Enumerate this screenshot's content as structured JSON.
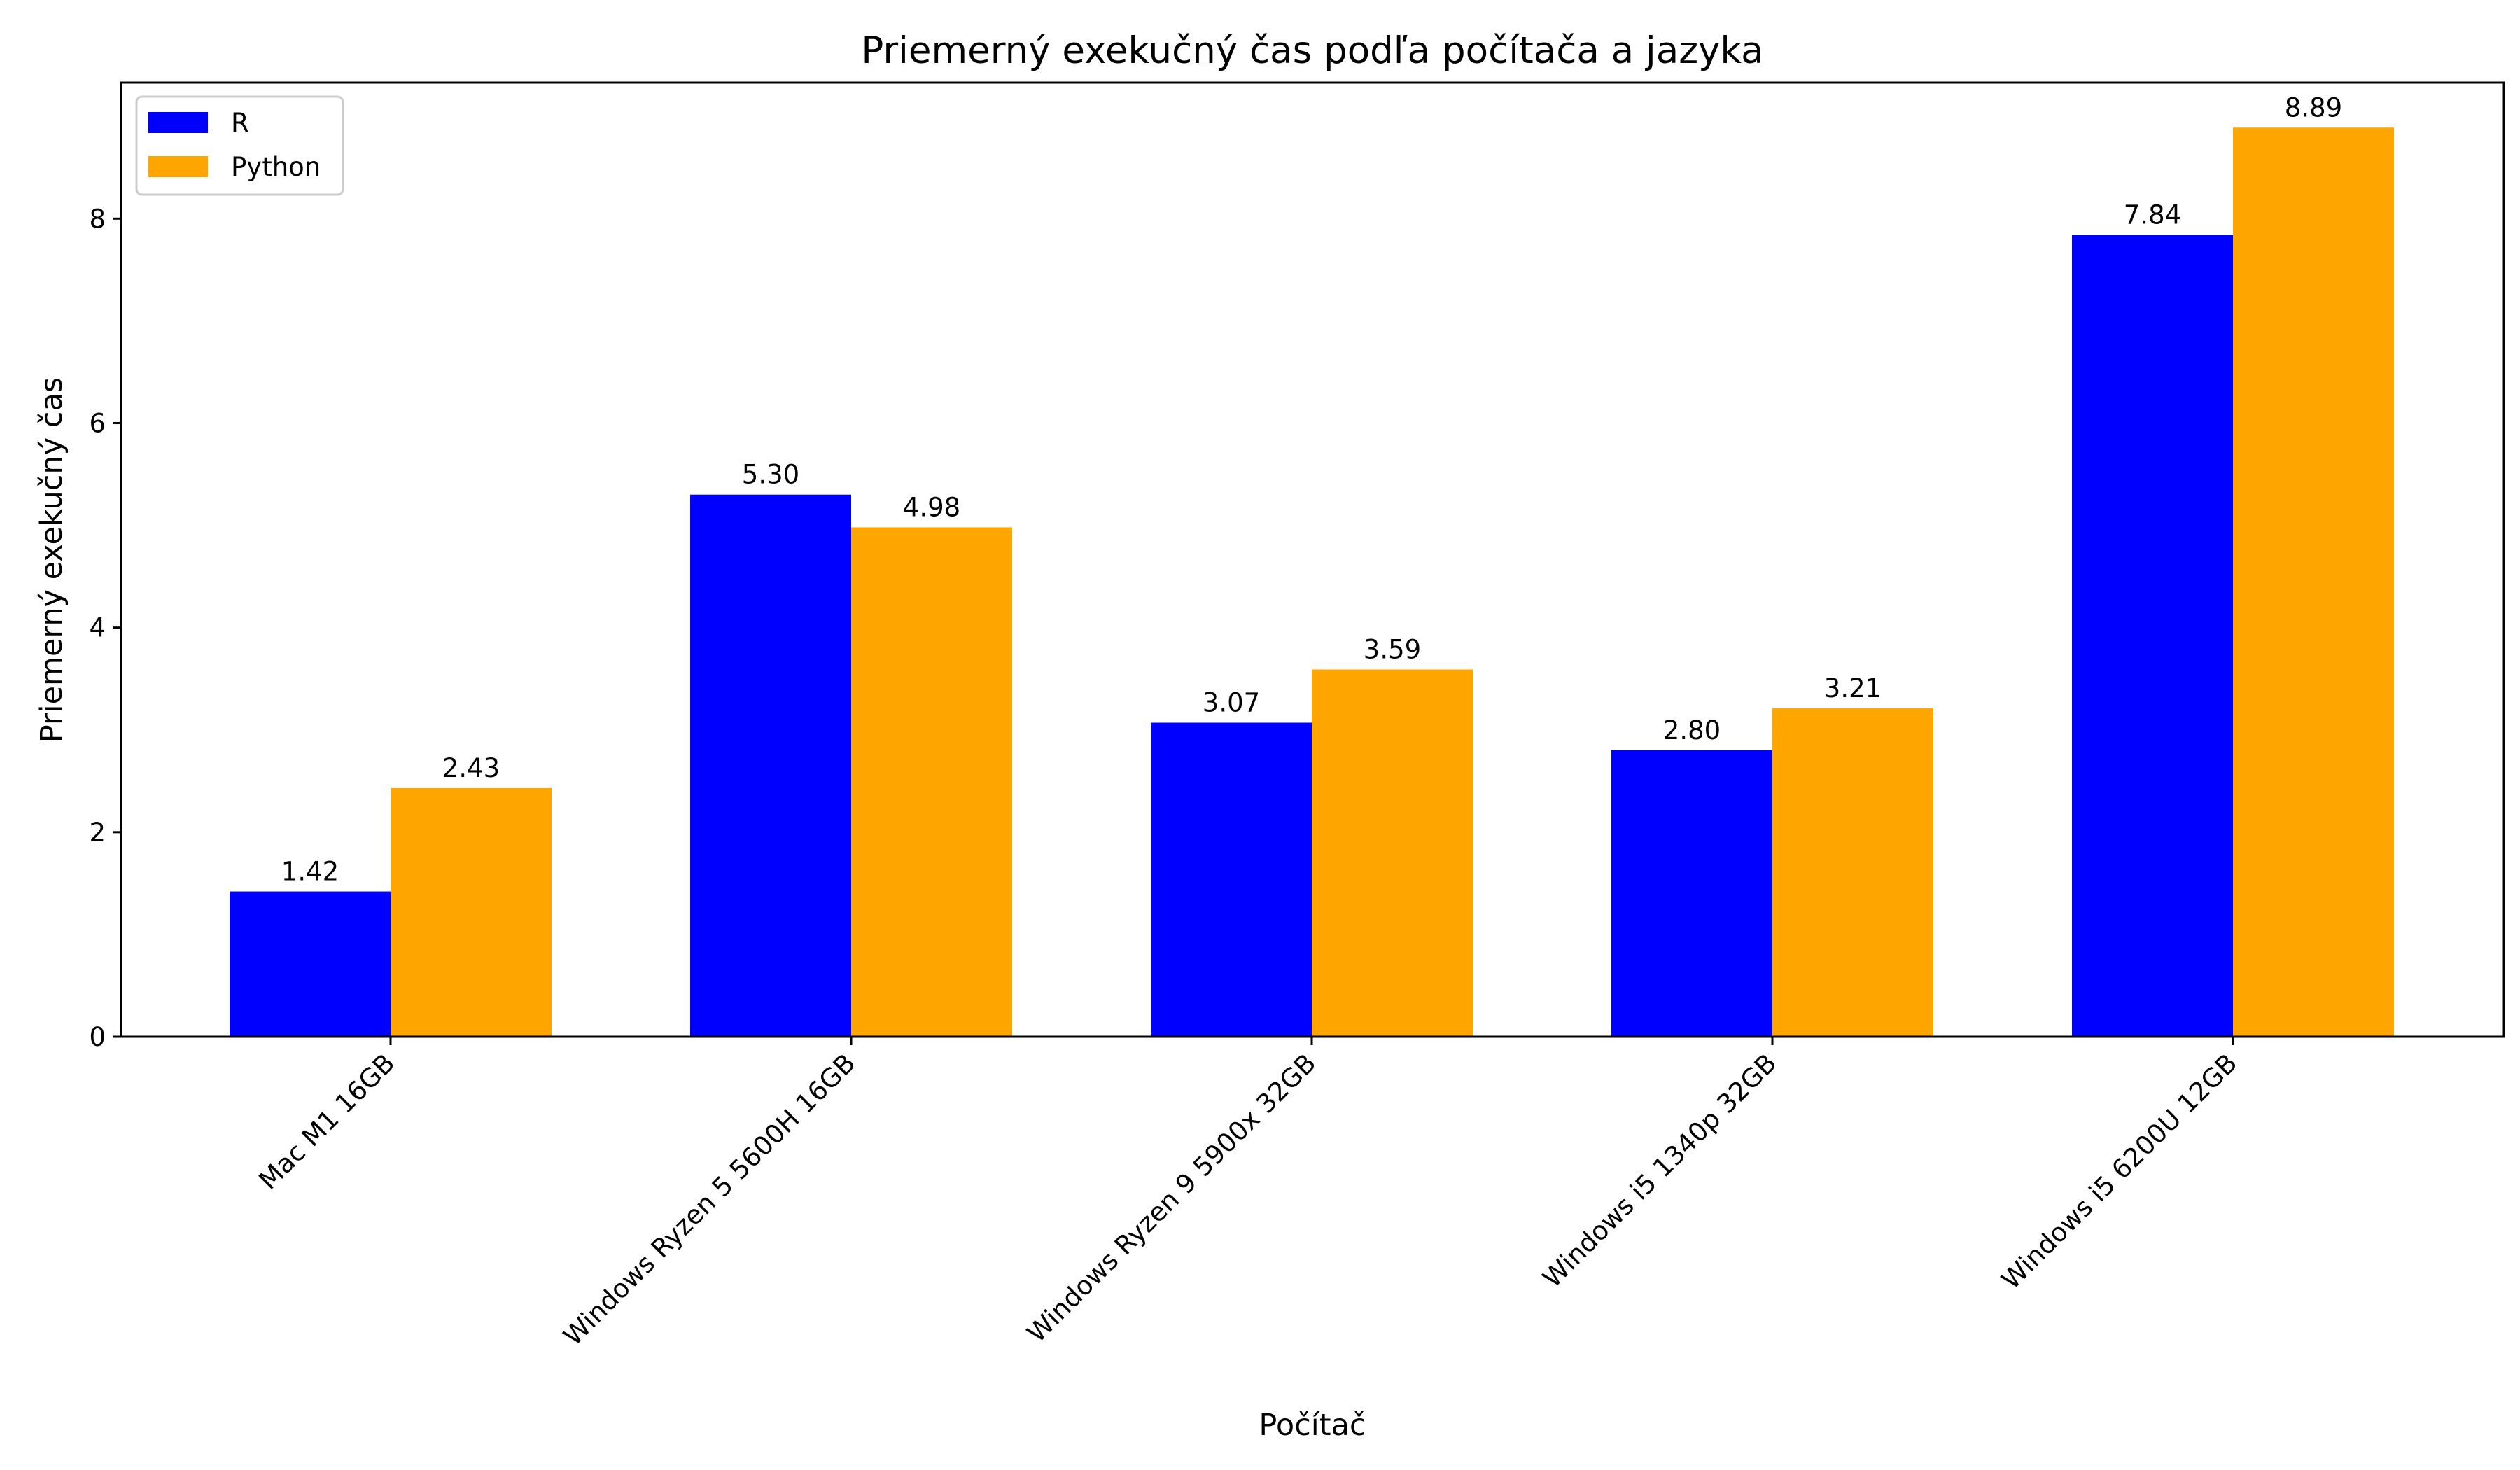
{
  "chart_data": {
    "type": "bar",
    "title": "Priemerný exekučný čas podľa počítača a jazyka",
    "xlabel": "Počítač",
    "ylabel": "Priemerný exekučný čas",
    "categories": [
      "Mac M1 16GB",
      "Windows Ryzen 5 5600H 16GB",
      "Windows Ryzen 9 5900x 32GB",
      "Windows i5 1340p 32GB",
      "Windows i5 6200U 12GB"
    ],
    "series": [
      {
        "name": "R",
        "color": "#0000ff",
        "values": [
          1.42,
          5.3,
          3.07,
          2.8,
          7.84
        ],
        "labels": [
          "1.42",
          "5.30",
          "3.07",
          "2.80",
          "7.84"
        ]
      },
      {
        "name": "Python",
        "color": "#ffa500",
        "values": [
          2.43,
          4.98,
          3.59,
          3.21,
          8.89
        ],
        "labels": [
          "2.43",
          "4.98",
          "3.59",
          "3.21",
          "8.89"
        ]
      }
    ],
    "ylim": [
      0,
      9.33
    ],
    "yticks": [
      0,
      2,
      4,
      6,
      8
    ],
    "ytick_labels": [
      "0",
      "2",
      "4",
      "6",
      "8"
    ],
    "legend_position": "upper-left",
    "grid": false
  }
}
